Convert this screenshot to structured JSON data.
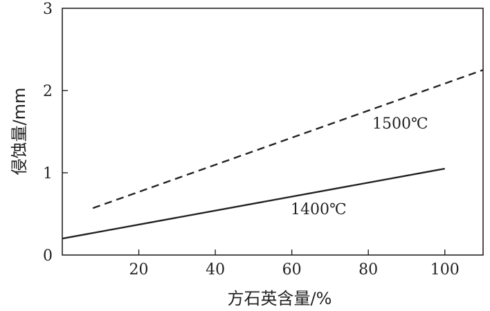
{
  "chart_data": {
    "type": "line",
    "title": "",
    "xlabel": "方石英含量/%",
    "ylabel": "侵蚀量/mm",
    "xlim": [
      0,
      110
    ],
    "ylim": [
      0,
      3
    ],
    "x_ticks": [
      20,
      40,
      60,
      80,
      100
    ],
    "y_ticks": [
      0,
      1,
      2,
      3
    ],
    "grid": false,
    "legend": "none",
    "series": [
      {
        "name": "1500℃",
        "style": "dashed",
        "color": "#222222",
        "x": [
          8,
          110
        ],
        "y": [
          0.57,
          2.25
        ]
      },
      {
        "name": "1400℃",
        "style": "solid",
        "color": "#222222",
        "x": [
          0,
          100
        ],
        "y": [
          0.2,
          1.05
        ]
      }
    ]
  }
}
